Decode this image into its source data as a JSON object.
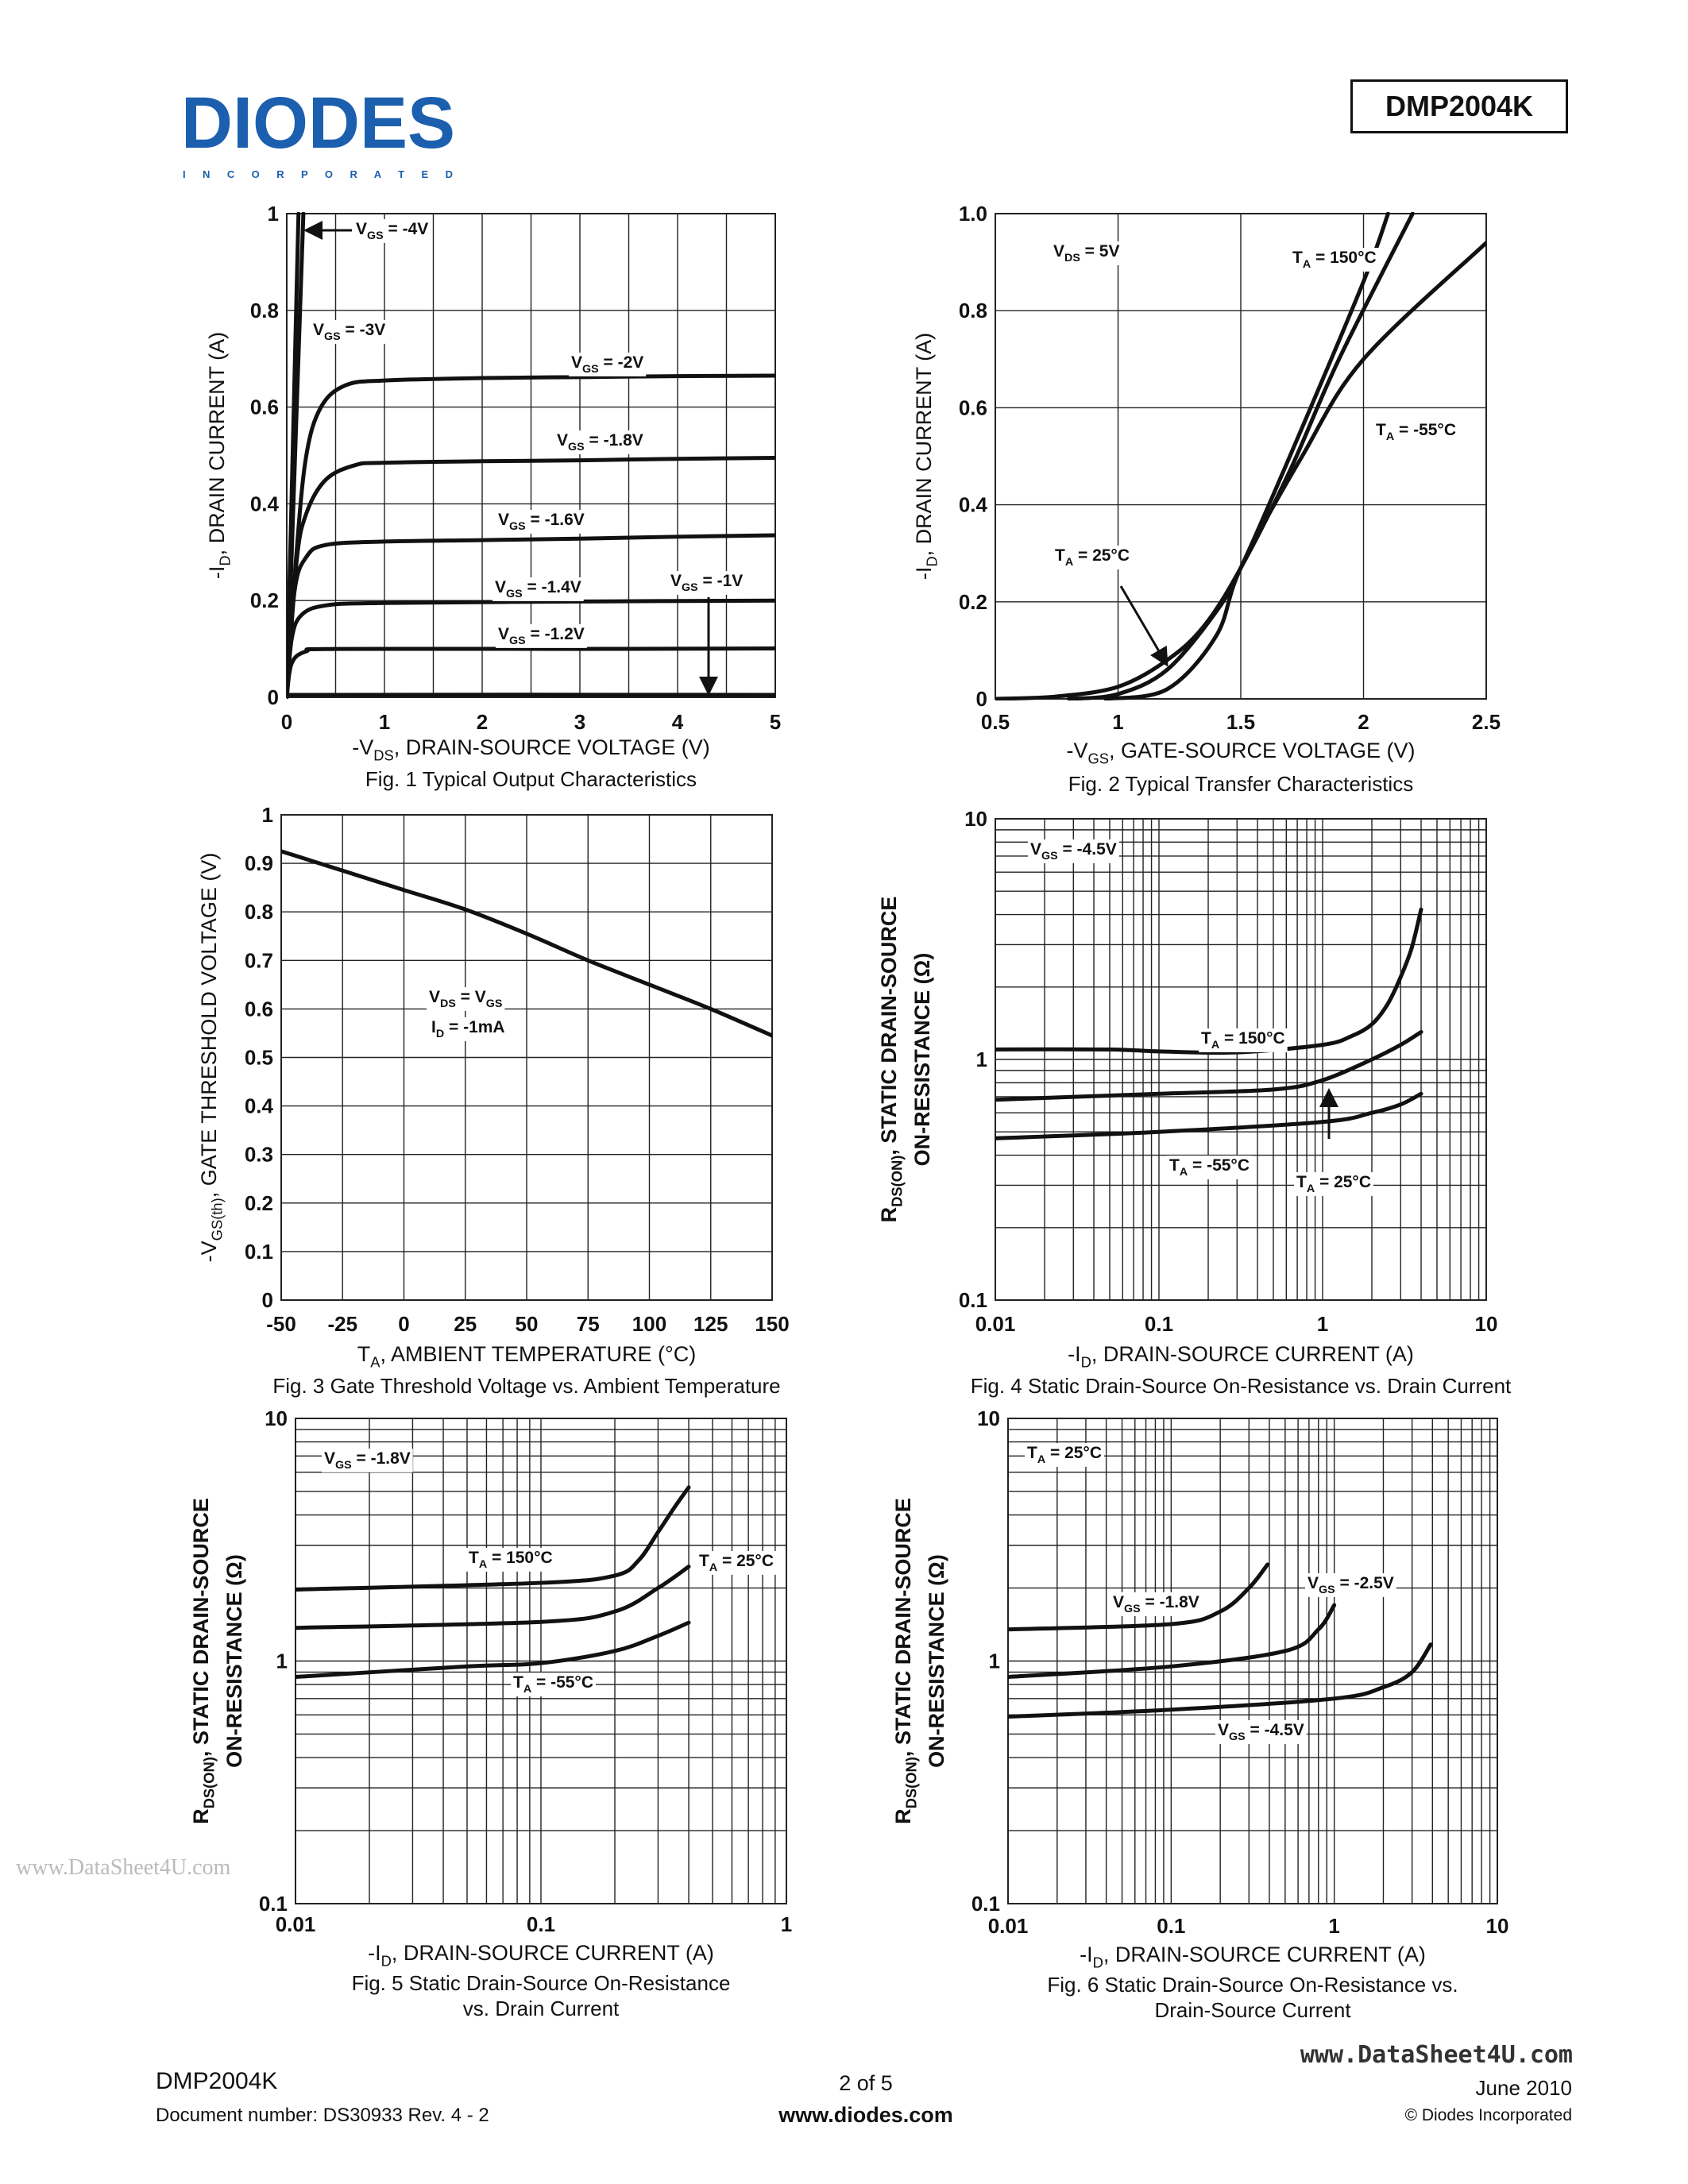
{
  "header": {
    "logo_text": "DIODES",
    "logo_subtext": "I N C O R P O R A T E D",
    "part_number": "DMP2004K",
    "brand_color": "#1b5fae"
  },
  "footer": {
    "part": "DMP2004K",
    "doc_number": "Document number: DS30933 Rev. 4 - 2",
    "page": "2 of 5",
    "website": "www.diodes.com",
    "watermark_site": "www.DataSheet4U.com",
    "date": "June 2010",
    "copyright": "© Diodes Incorporated"
  },
  "watermark": "www.DataSheet4U.com",
  "chart_data": [
    {
      "type": "line",
      "title": "Fig. 1  Typical Output Characteristics",
      "xlabel": [
        "-V",
        "DS",
        ", DRAIN-SOURCE VOLTAGE (V)"
      ],
      "ylabel": [
        [
          "-I",
          "D",
          ", DRAIN CURRENT (A)"
        ]
      ],
      "xscale": "linear",
      "yscale": "linear",
      "xlim": [
        0,
        5
      ],
      "ylim": [
        0,
        1
      ],
      "xticks": [
        0,
        1,
        2,
        3,
        4,
        5
      ],
      "xtick_labels": [
        "0",
        "1",
        "2",
        "3",
        "4",
        "5"
      ],
      "yticks": [
        0,
        0.2,
        0.4,
        0.6,
        0.8,
        1
      ],
      "ytick_labels": [
        "0",
        "0.2",
        "0.4",
        "0.6",
        "0.8",
        "1"
      ],
      "xgrid": [
        0.5,
        1,
        1.5,
        2,
        2.5,
        3,
        3.5,
        4,
        4.5
      ],
      "ygrid": [
        0.2,
        0.4,
        0.6,
        0.8
      ],
      "series": [
        {
          "name": "V_GS = -4V",
          "x": [
            0,
            0.17
          ],
          "y": [
            0,
            1
          ]
        },
        {
          "name": "V_GS = -3V",
          "x": [
            0,
            0.12
          ],
          "y": [
            0,
            1
          ]
        },
        {
          "name": "V_GS = -2V",
          "x": [
            0,
            0.1,
            0.2,
            0.35,
            0.6,
            1,
            2,
            3,
            4,
            5
          ],
          "y": [
            0,
            0.3,
            0.5,
            0.6,
            0.645,
            0.655,
            0.66,
            0.662,
            0.664,
            0.665
          ]
        },
        {
          "name": "V_GS = -1.8V",
          "x": [
            0,
            0.1,
            0.2,
            0.4,
            0.7,
            1,
            2,
            3,
            4,
            5
          ],
          "y": [
            0,
            0.28,
            0.38,
            0.45,
            0.48,
            0.485,
            0.488,
            0.49,
            0.493,
            0.495
          ]
        },
        {
          "name": "V_GS = -1.6V",
          "x": [
            0,
            0.08,
            0.2,
            0.4,
            1,
            2,
            3,
            4,
            5
          ],
          "y": [
            0,
            0.22,
            0.29,
            0.315,
            0.322,
            0.325,
            0.328,
            0.332,
            0.335
          ]
        },
        {
          "name": "V_GS = -1.4V",
          "x": [
            0,
            0.05,
            0.15,
            0.4,
            1,
            3,
            5
          ],
          "y": [
            0,
            0.12,
            0.17,
            0.19,
            0.195,
            0.198,
            0.2
          ]
        },
        {
          "name": "V_GS = -1.2V",
          "x": [
            0,
            0.05,
            0.2,
            0.5,
            3,
            5
          ],
          "y": [
            0,
            0.07,
            0.095,
            0.1,
            0.1,
            0.101
          ]
        },
        {
          "name": "V_GS = -1V",
          "x": [
            0,
            0.05,
            5
          ],
          "y": [
            0,
            0.005,
            0.005
          ]
        }
      ],
      "annotations": [
        [
          "V",
          "GS",
          " = -4V"
        ],
        [
          "V",
          "GS",
          " = -3V"
        ],
        [
          "V",
          "GS",
          " = -2V"
        ],
        [
          "V",
          "GS",
          " = -1.8V"
        ],
        [
          "V",
          "GS",
          " = -1.6V"
        ],
        [
          "V",
          "GS",
          " = -1.4V"
        ],
        [
          "V",
          "GS",
          " = -1.2V"
        ],
        [
          "V",
          "GS",
          " = -1V"
        ]
      ]
    },
    {
      "type": "line",
      "title": "Fig. 2  Typical Transfer Characteristics",
      "xlabel": [
        "-V",
        "GS",
        ", GATE-SOURCE VOLTAGE (V)"
      ],
      "ylabel": [
        [
          "-I",
          "D",
          ", DRAIN CURRENT (A)"
        ]
      ],
      "xscale": "linear",
      "yscale": "linear",
      "xlim": [
        0.5,
        2.5
      ],
      "ylim": [
        0,
        1
      ],
      "xticks": [
        0.5,
        1,
        1.5,
        2,
        2.5
      ],
      "xtick_labels": [
        "0.5",
        "1",
        "1.5",
        "2",
        "2.5"
      ],
      "yticks": [
        0,
        0.2,
        0.4,
        0.6,
        0.8,
        1
      ],
      "ytick_labels": [
        "0",
        "0.2",
        "0.4",
        "0.6",
        "0.8",
        "1.0"
      ],
      "xgrid": [
        1,
        1.5,
        2
      ],
      "ygrid": [
        0.2,
        0.4,
        0.6,
        0.8
      ],
      "series": [
        {
          "name": "T_A = 150°C",
          "x": [
            0.5,
            0.75,
            1,
            1.2,
            1.35,
            1.5,
            1.7,
            1.9,
            2.2
          ],
          "y": [
            0,
            0.005,
            0.025,
            0.08,
            0.15,
            0.27,
            0.47,
            0.7,
            1.0
          ]
        },
        {
          "name": "T_A = 25°C",
          "x": [
            0.8,
            1,
            1.2,
            1.4,
            1.5,
            1.7,
            2,
            2.1
          ],
          "y": [
            0,
            0.01,
            0.06,
            0.18,
            0.27,
            0.5,
            0.86,
            1.0
          ]
        },
        {
          "name": "T_A = -55°C",
          "x": [
            0.95,
            1.2,
            1.4,
            1.5,
            1.75,
            2,
            2.5
          ],
          "y": [
            0,
            0.02,
            0.13,
            0.27,
            0.5,
            0.7,
            0.94
          ]
        }
      ],
      "annotations": [
        [
          "V",
          "DS",
          " = 5V"
        ],
        [
          "T",
          "A",
          " = 150°C"
        ],
        [
          "T",
          "A",
          " = -55°C"
        ],
        [
          "T",
          "A",
          " = 25°C"
        ]
      ]
    },
    {
      "type": "line",
      "title": "Fig. 3  Gate Threshold Voltage vs. Ambient Temperature",
      "xlabel": [
        "T",
        "A",
        ", AMBIENT TEMPERATURE (°C)"
      ],
      "ylabel": [
        [
          "-V",
          "GS(th)",
          ", GATE THRESHOLD VOLTAGE (V)"
        ]
      ],
      "xscale": "linear",
      "yscale": "linear",
      "xlim": [
        -50,
        150
      ],
      "ylim": [
        0,
        1
      ],
      "xticks": [
        -50,
        -25,
        0,
        25,
        50,
        75,
        100,
        125,
        150
      ],
      "xtick_labels": [
        "-50",
        "-25",
        "0",
        "25",
        "50",
        "75",
        "100",
        "125",
        "150"
      ],
      "yticks": [
        0,
        0.1,
        0.2,
        0.3,
        0.4,
        0.5,
        0.6,
        0.7,
        0.8,
        0.9,
        1
      ],
      "ytick_labels": [
        "0",
        "0.1",
        "0.2",
        "0.3",
        "0.4",
        "0.5",
        "0.6",
        "0.7",
        "0.8",
        "0.9",
        "1"
      ],
      "xgrid": [
        -25,
        0,
        25,
        50,
        75,
        100,
        125
      ],
      "ygrid": [
        0.1,
        0.2,
        0.3,
        0.4,
        0.5,
        0.6,
        0.7,
        0.8,
        0.9
      ],
      "series": [
        {
          "x": [
            -50,
            -25,
            0,
            25,
            50,
            75,
            100,
            125,
            150
          ],
          "y": [
            0.925,
            0.885,
            0.845,
            0.805,
            0.755,
            0.7,
            0.65,
            0.6,
            0.545
          ]
        }
      ],
      "annotations": [
        [
          "V",
          "DS",
          " = V",
          "GS",
          ""
        ],
        [
          "I",
          "D",
          " = -1mA"
        ]
      ]
    },
    {
      "type": "line",
      "title": "Fig. 4  Static Drain-Source On-Resistance vs. Drain Current",
      "xlabel": [
        "-I",
        "D",
        ", DRAIN-SOURCE CURRENT (A)"
      ],
      "ylabel": [
        [
          "R",
          "DS(ON)",
          ", STATIC DRAIN-SOURCE"
        ],
        [
          "ON-RESISTANCE (Ω)"
        ]
      ],
      "xscale": "log",
      "yscale": "log",
      "xlim": [
        0.01,
        10
      ],
      "ylim": [
        0.1,
        10
      ],
      "xticks": [
        0.01,
        0.1,
        1,
        10
      ],
      "xtick_labels": [
        "0.01",
        "0.1",
        "1",
        "10"
      ],
      "yticks": [
        0.1,
        1,
        10
      ],
      "ytick_labels": [
        "0.1",
        "1",
        "10"
      ],
      "series": [
        {
          "name": "T_A = 150°C",
          "x": [
            0.01,
            0.05,
            0.1,
            0.3,
            1,
            1.5,
            2,
            2.5,
            3,
            3.5,
            4
          ],
          "y": [
            1.1,
            1.1,
            1.08,
            1.07,
            1.15,
            1.25,
            1.4,
            1.7,
            2.2,
            2.9,
            4.2
          ]
        },
        {
          "name": "T_A = 25°C",
          "x": [
            0.01,
            0.1,
            0.5,
            1,
            2,
            3,
            4
          ],
          "y": [
            0.68,
            0.72,
            0.75,
            0.82,
            1.0,
            1.15,
            1.3
          ]
        },
        {
          "name": "T_A = -55°C",
          "x": [
            0.01,
            0.1,
            1,
            2,
            3,
            4
          ],
          "y": [
            0.47,
            0.5,
            0.55,
            0.6,
            0.65,
            0.72
          ]
        }
      ],
      "annotations": [
        [
          "V",
          "GS",
          " = -4.5V"
        ],
        [
          "T",
          "A",
          " = 150°C"
        ],
        [
          "T",
          "A",
          " = -55°C"
        ],
        [
          "T",
          "A",
          " = 25°C"
        ]
      ]
    },
    {
      "type": "line",
      "title": "Fig. 5  Static Drain-Source On-Resistance",
      "title_line2": "vs. Drain Current",
      "xlabel": [
        "-I",
        "D",
        ", DRAIN-SOURCE CURRENT (A)"
      ],
      "ylabel": [
        [
          "R",
          "DS(ON)",
          ", STATIC DRAIN-SOURCE"
        ],
        [
          "ON-RESISTANCE (Ω)"
        ]
      ],
      "xscale": "log",
      "yscale": "log",
      "xlim": [
        0.01,
        1
      ],
      "ylim": [
        0.1,
        10
      ],
      "xticks": [
        0.01,
        0.1,
        1
      ],
      "xtick_labels": [
        "0.01",
        "0.1",
        "1"
      ],
      "yticks": [
        0.1,
        1,
        10
      ],
      "ytick_labels": [
        "0.1",
        "1",
        "10"
      ],
      "series": [
        {
          "name": "T_A = 150°C",
          "x": [
            0.01,
            0.1,
            0.2,
            0.25,
            0.3,
            0.35,
            0.4
          ],
          "y": [
            1.97,
            2.1,
            2.25,
            2.6,
            3.4,
            4.3,
            5.2
          ]
        },
        {
          "name": "T_A = 25°C",
          "x": [
            0.01,
            0.1,
            0.2,
            0.3,
            0.4
          ],
          "y": [
            1.37,
            1.45,
            1.6,
            2.0,
            2.45
          ]
        },
        {
          "name": "T_A = -55°C",
          "x": [
            0.01,
            0.05,
            0.1,
            0.2,
            0.3,
            0.4
          ],
          "y": [
            0.86,
            0.95,
            0.98,
            1.1,
            1.27,
            1.44
          ]
        }
      ],
      "annotations": [
        [
          "V",
          "GS",
          " = -1.8V"
        ],
        [
          "T",
          "A",
          " = 150°C"
        ],
        [
          "T",
          "A",
          " = 25°C"
        ],
        [
          "T",
          "A",
          " = -55°C"
        ]
      ]
    },
    {
      "type": "line",
      "title": "Fig. 6  Static Drain-Source On-Resistance vs.",
      "title_line2": "Drain-Source Current",
      "xlabel": [
        "-I",
        "D",
        ", DRAIN-SOURCE CURRENT (A)"
      ],
      "ylabel": [
        [
          "R",
          "DS(ON)",
          ", STATIC DRAIN-SOURCE"
        ],
        [
          "ON-RESISTANCE (Ω)"
        ]
      ],
      "xscale": "log",
      "yscale": "log",
      "xlim": [
        0.01,
        10
      ],
      "ylim": [
        0.1,
        10
      ],
      "xticks": [
        0.01,
        0.1,
        1,
        10
      ],
      "xtick_labels": [
        "0.01",
        "0.1",
        "1",
        "10"
      ],
      "yticks": [
        0.1,
        1,
        10
      ],
      "ytick_labels": [
        "0.1",
        "1",
        "10"
      ],
      "series": [
        {
          "name": "V_GS = -1.8V",
          "x": [
            0.01,
            0.1,
            0.2,
            0.3,
            0.39
          ],
          "y": [
            1.35,
            1.42,
            1.6,
            2.0,
            2.5
          ]
        },
        {
          "name": "V_GS = -2.5V",
          "x": [
            0.01,
            0.1,
            0.5,
            0.8,
            1.0
          ],
          "y": [
            0.86,
            0.95,
            1.1,
            1.35,
            1.7
          ]
        },
        {
          "name": "V_GS = -4.5V",
          "x": [
            0.01,
            0.1,
            1,
            2,
            3,
            3.9
          ],
          "y": [
            0.59,
            0.63,
            0.7,
            0.78,
            0.9,
            1.17
          ]
        }
      ],
      "annotations": [
        [
          "T",
          "A",
          " = 25°C"
        ],
        [
          "V",
          "GS",
          " = -1.8V"
        ],
        [
          "V",
          "GS",
          " = -2.5V"
        ],
        [
          "V",
          "GS",
          " = -4.5V"
        ]
      ]
    }
  ]
}
